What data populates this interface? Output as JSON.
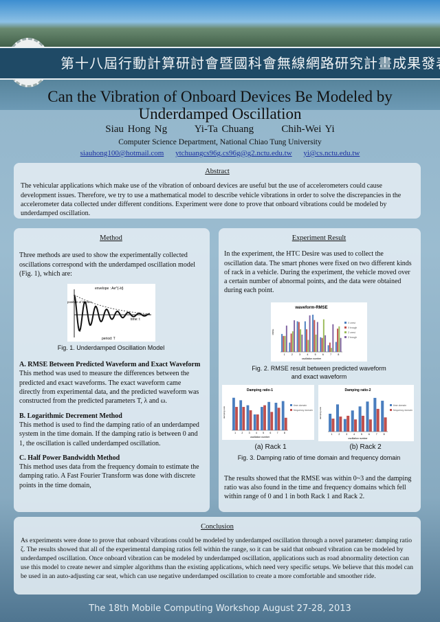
{
  "header": {
    "banner_text": "第十八屆行動計算研討會暨國科會無線網路研究計畫成果發表會",
    "logo_text": "1896"
  },
  "title": "Can the Vibration of Onboard Devices Be Modeled by Underdamped Oscillation",
  "authors": [
    "Siau Hong Ng",
    "Yi-Ta Chuang",
    "Chih-Wei Yi"
  ],
  "affiliation": "Computer Science Department, National Chiao Tung University",
  "emails": [
    "siauhong100@hotmail.com",
    "ytchuangcs96g.cs96g@g2.nctu.edu.tw",
    "yi@cs.nctu.edu.tw"
  ],
  "abstract": {
    "heading": "Abstract",
    "text": "The vehicular applications which make use of the vibration of onboard devices are useful but the use of accelerometers could cause development issues. Therefore, we try to use a mathematical model to describe vehicle vibrations in order to solve the discrepancies in the accelerometer data collected under different conditions. Experiment were done to prove that onboard vibrations could be modeled by underdamped oscillation."
  },
  "method": {
    "heading": "Method",
    "intro": "Three methods are used to show the experimentally collected oscillations correspond with the underdamped oscillation model (Fig. 1), which are:",
    "fig1": {
      "caption": "Fig. 1. Underdamped Oscillation Model",
      "envelope": "envelope : Ae^{-λt}",
      "ylabel": "position of block x",
      "xlabel": "time: t",
      "period": "period: T"
    },
    "sections": [
      {
        "title": "A.  RMSE Between Predicted Waveform and Exact Waveform",
        "text": "This method was used to measure the differences between the predicted and exact waveforms. The exact waveform came directly from experimental data, and the predicted waveform was constructed from the predicted parameters T,  λ and ω."
      },
      {
        "title": "B.  Logarithmic Decrement Method",
        "text": "This method is used to find the damping ratio of an underdamped system in the time domain. If the damping ratio is between 0 and 1, the oscillation is called underdamped oscillation."
      },
      {
        "title": "C.  Half Power Bandwidth Method",
        "text": "This method uses data from the frequency domain to estimate the damping ratio. A Fast Fourier Transform was done with discrete points in the time domain,"
      }
    ]
  },
  "experiment": {
    "heading": "Experiment Result",
    "intro": "In the experiment, the HTC Desire was used to collect the oscillation data. The smart phones were fixed on two different kinds of rack in a vehicle. During the experiment, the vehicle moved over a certain number of abnormal points, and the data were obtained during each point.",
    "fig2_caption": "Fig. 2. RMSE result between predicted waveform and exact waveform",
    "fig3a": "(a) Rack 1",
    "fig3b": "(b) Rack 2",
    "fig3_caption": "Fig. 3. Damping ratio of time domain and frequency domain",
    "result": "The results showed that the RMSE was within 0~3 and the damping ratio was also found in the time and frequency domains which fell within range of 0 and 1 in both Rack 1 and Rack 2."
  },
  "chart_data": [
    {
      "type": "bar",
      "title": "waveform-RMSE",
      "xlabel": "oscillation number",
      "ylabel": "RMSE",
      "ylim": [
        0,
        3
      ],
      "categories": [
        "1",
        "2",
        "3",
        "4",
        "5",
        "6",
        "7",
        "8"
      ],
      "legend": "right",
      "series": [
        {
          "name": "X crest",
          "color": "#4a7ebf",
          "values": [
            1.35,
            0.7,
            2.3,
            2.3,
            2.8,
            1.1,
            0.5,
            0.75
          ]
        },
        {
          "name": "X trough",
          "color": "#c0504d",
          "values": [
            1.2,
            1.38,
            2.25,
            1.7,
            2.4,
            1.05,
            0.7,
            1.75
          ]
        },
        {
          "name": "Z crest",
          "color": "#9bbb59",
          "values": [
            1.2,
            1.55,
            1.7,
            0.9,
            1.3,
            2.45,
            0.3,
            1.92
          ]
        },
        {
          "name": "Z trough",
          "color": "#8064a2",
          "values": [
            1.98,
            2.38,
            1.3,
            2.75,
            2.25,
            1.25,
            2.08,
            1.05
          ]
        }
      ]
    },
    {
      "type": "bar",
      "title": "Damping ratio-1",
      "xlabel": "oscillation number",
      "ylabel": "damping ratio",
      "categories": [
        "1",
        "2",
        "3",
        "4",
        "5",
        "6",
        "7",
        "8"
      ],
      "legend": "right",
      "series": [
        {
          "name": "time domain",
          "color": "#4a7ebf",
          "values": [
            0.039,
            0.036,
            0.03,
            0.019,
            0.028,
            0.034,
            0.033,
            0.035
          ]
        },
        {
          "name": "frequency domain",
          "color": "#c0504d",
          "values": [
            0.028,
            0.028,
            0.024,
            0.019,
            0.03,
            0.022,
            0.027,
            0.015
          ]
        }
      ]
    },
    {
      "type": "bar",
      "title": "Damping ratio-2",
      "xlabel": "oscillation number",
      "ylabel": "damping ratio",
      "categories": [
        "1",
        "2",
        "3",
        "4",
        "5",
        "6",
        "7",
        "8"
      ],
      "legend": "right",
      "series": [
        {
          "name": "time domain",
          "color": "#4a7ebf",
          "values": [
            0.044,
            0.067,
            0.031,
            0.052,
            0.062,
            0.074,
            0.083,
            0.076
          ]
        },
        {
          "name": "frequency domain",
          "color": "#c0504d",
          "values": [
            0.032,
            0.037,
            0.039,
            0.03,
            0.039,
            0.03,
            0.056,
            0.035
          ]
        }
      ]
    }
  ],
  "conclusion": {
    "heading": "Conclusion",
    "text": "As experiments were done to prove that onboard vibrations could be modeled by underdamped oscillation through a novel parameter: damping ratio ζ. The results showed that all of the experimental damping ratios fell within the range, so it can be said that onboard vibration can be modeled by underdamped oscillation. Once onboard vibration can be modeled by underdamped oscillation, applications such as road abnormality detection can use this model to create newer and simpler algorithms than the existing applications, which need very specific setups. We believe that this model can be used in an auto-adjusting car seat, which can use negative underdamped oscillation to create a more comfortable and smoother ride."
  },
  "footer": "The 18th Mobile Computing Workshop   August 27-28, 2013"
}
